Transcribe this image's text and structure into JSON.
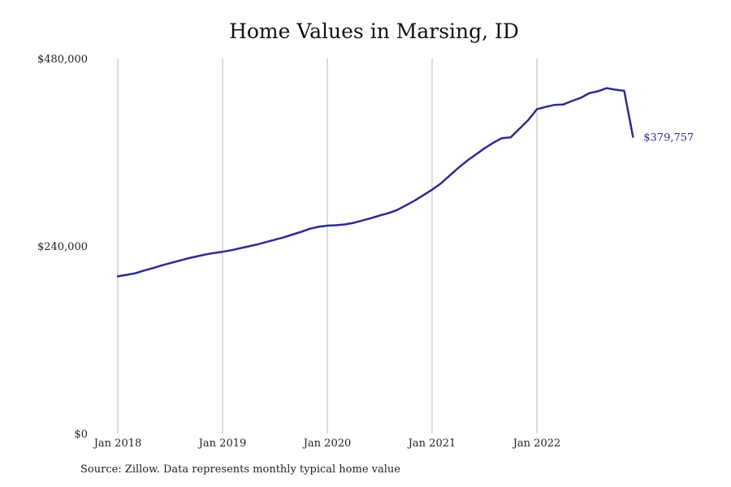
{
  "colors": {
    "line": "#2e2a8c",
    "grid": "#b8b8b8",
    "text": "#222222"
  },
  "footer": {
    "source": "Source: Zillow. Data represents monthly typical home value"
  },
  "chart_data": {
    "type": "line",
    "title": "Home Values in Marsing, ID",
    "xlabel": "",
    "ylabel": "",
    "ylim": [
      0,
      480000
    ],
    "y_ticks": [
      {
        "value": 0,
        "label": "$0"
      },
      {
        "value": 240000,
        "label": "$240,000"
      },
      {
        "value": 480000,
        "label": "$480,000"
      }
    ],
    "x_ticks": [
      {
        "value": "2018-01",
        "label": "Jan 2018"
      },
      {
        "value": "2019-01",
        "label": "Jan 2019"
      },
      {
        "value": "2020-01",
        "label": "Jan 2020"
      },
      {
        "value": "2021-01",
        "label": "Jan 2021"
      },
      {
        "value": "2022-01",
        "label": "Jan 2022"
      }
    ],
    "grid": "vertical",
    "end_label": "$379,757",
    "series": [
      {
        "x": [
          "2018-01",
          "2018-02",
          "2018-03",
          "2018-04",
          "2018-05",
          "2018-06",
          "2018-07",
          "2018-08",
          "2018-09",
          "2018-10",
          "2018-11",
          "2018-12",
          "2019-01",
          "2019-02",
          "2019-03",
          "2019-04",
          "2019-05",
          "2019-06",
          "2019-07",
          "2019-08",
          "2019-09",
          "2019-10",
          "2019-11",
          "2019-12",
          "2020-01",
          "2020-02",
          "2020-03",
          "2020-04",
          "2020-05",
          "2020-06",
          "2020-07",
          "2020-08",
          "2020-09",
          "2020-10",
          "2020-11",
          "2020-12",
          "2021-01",
          "2021-02",
          "2021-03",
          "2021-04",
          "2021-05",
          "2021-06",
          "2021-07",
          "2021-08",
          "2021-09",
          "2021-10",
          "2021-11",
          "2021-12",
          "2022-01",
          "2022-02",
          "2022-03",
          "2022-04",
          "2022-05",
          "2022-06",
          "2022-07",
          "2022-08",
          "2022-09",
          "2022-10",
          "2022-11",
          "2022-12"
        ],
        "y": [
          201000,
          203000,
          205000,
          208500,
          211500,
          215000,
          218000,
          221000,
          224000,
          226500,
          229000,
          231000,
          232500,
          234500,
          237000,
          239500,
          242000,
          245000,
          248000,
          251000,
          254500,
          258000,
          262000,
          264500,
          266000,
          266500,
          267500,
          269500,
          272500,
          275500,
          279000,
          282000,
          286000,
          292000,
          298000,
          305000,
          312000,
          320000,
          330000,
          340000,
          349000,
          357000,
          365000,
          372000,
          378000,
          379000,
          390000,
          401000,
          415000,
          418000,
          420500,
          421000,
          425500,
          429500,
          435500,
          438000,
          442000,
          440000,
          438500,
          379757
        ]
      }
    ]
  }
}
